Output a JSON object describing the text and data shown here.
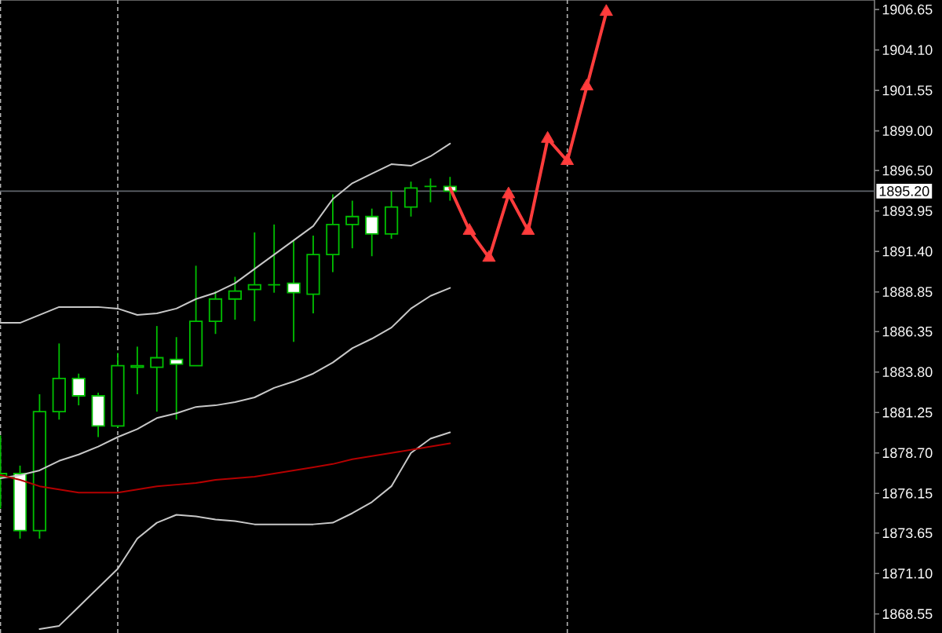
{
  "chart_data": {
    "type": "candlestick",
    "categories": [
      null,
      null,
      null,
      null,
      null,
      null,
      null,
      null,
      null,
      null,
      null,
      null,
      null,
      null,
      null,
      null,
      null,
      null,
      null,
      null,
      null,
      null,
      null,
      null,
      null,
      null,
      null,
      null,
      null,
      null,
      null,
      null,
      null,
      null,
      null,
      null,
      null,
      null,
      null,
      null,
      null,
      null,
      null,
      null,
      null
    ],
    "ohlc": [
      [
        1877.2,
        1879.8,
        1875.2,
        1877.4
      ],
      [
        1877.4,
        1877.9,
        1873.3,
        1873.8
      ],
      [
        1873.8,
        1882.4,
        1873.3,
        1881.3
      ],
      [
        1881.3,
        1885.6,
        1880.8,
        1883.4
      ],
      [
        1883.4,
        1883.7,
        1881.7,
        1882.3
      ],
      [
        1882.3,
        1882.5,
        1879.7,
        1880.4
      ],
      [
        1880.4,
        1885.0,
        1880.3,
        1884.2
      ],
      [
        1884.1,
        1885.4,
        1882.4,
        1884.2
      ],
      [
        1884.1,
        1886.7,
        1881.3,
        1884.7
      ],
      [
        1884.6,
        1886.0,
        1880.8,
        1884.3
      ],
      [
        1884.2,
        1890.5,
        1884.2,
        1887.0
      ],
      [
        1887.0,
        1888.9,
        1886.2,
        1888.4
      ],
      [
        1888.4,
        1889.8,
        1887.1,
        1888.9
      ],
      [
        1889.0,
        1892.6,
        1887.0,
        1889.3
      ],
      [
        1889.3,
        1893.1,
        1888.8,
        1889.3
      ],
      [
        1889.4,
        1892.1,
        1885.7,
        1888.8
      ],
      [
        1888.7,
        1892.4,
        1887.5,
        1891.2
      ],
      [
        1891.2,
        1895.0,
        1890.1,
        1893.1
      ],
      [
        1893.1,
        1894.6,
        1891.6,
        1893.6
      ],
      [
        1893.6,
        1894.1,
        1891.1,
        1892.5
      ],
      [
        1892.5,
        1895.2,
        1892.2,
        1894.2
      ],
      [
        1894.2,
        1895.8,
        1893.6,
        1895.4
      ],
      [
        1895.5,
        1896.0,
        1894.5,
        1895.5
      ],
      [
        1895.5,
        1896.1,
        1894.6,
        1895.2
      ],
      null,
      null,
      null,
      null,
      null,
      null,
      null,
      null,
      null,
      null,
      null,
      null,
      null,
      null,
      null,
      null,
      null,
      null,
      null,
      null,
      null
    ],
    "color": "#00c000",
    "colors": [
      "#000000",
      "#ffffff",
      "#000000",
      "#000000",
      "#ffffff",
      "#ffffff",
      "#000000",
      "#000000",
      "#000000",
      "#ffffff",
      "#000000",
      "#000000",
      "#000000",
      "#000000",
      "#00c000",
      "#ffffff",
      "#000000",
      "#000000",
      "#000000",
      "#ffffff",
      "#000000",
      "#000000",
      "#00c000",
      "#ffffff",
      null,
      null,
      null,
      null,
      null,
      null,
      null,
      null,
      null,
      null,
      null,
      null,
      null,
      null,
      null,
      null,
      null,
      null,
      null,
      null,
      null
    ],
    "series": [
      {
        "type": "line",
        "color": "#c8c8c8",
        "values": [
          1886.9,
          1886.9,
          1887.4,
          1887.9,
          1887.9,
          1887.9,
          1887.8,
          1887.4,
          1887.5,
          1887.8,
          1888.4,
          1888.8,
          1889.4,
          1890.3,
          1891.2,
          1892.1,
          1893.0,
          1894.7,
          1895.7,
          1896.3,
          1896.9,
          1896.8,
          1897.4,
          1898.2,
          null,
          null,
          null,
          null,
          null,
          null,
          null,
          null,
          null,
          null,
          null,
          null,
          null,
          null,
          null,
          null,
          null,
          null,
          null,
          null,
          null
        ]
      },
      {
        "type": "line",
        "color": "#c8c8c8",
        "values": [
          1877.1,
          1877.3,
          1877.6,
          1878.2,
          1878.6,
          1879.1,
          1879.7,
          1880.2,
          1880.9,
          1881.2,
          1881.6,
          1881.7,
          1881.9,
          1882.2,
          1882.8,
          1883.2,
          1883.7,
          1884.4,
          1885.3,
          1885.9,
          1886.6,
          1887.8,
          1888.6,
          1889.1,
          null,
          null,
          null,
          null,
          null,
          null,
          null,
          null,
          null,
          null,
          null,
          null,
          null,
          null,
          null,
          null,
          null,
          null,
          null,
          null,
          null
        ]
      },
      {
        "type": "line",
        "color": "#c8c8c8",
        "values": [
          null,
          null,
          1867.6,
          1867.8,
          1869.0,
          1870.2,
          1871.4,
          1873.3,
          1874.3,
          1874.8,
          1874.7,
          1874.5,
          1874.4,
          1874.2,
          1874.2,
          1874.2,
          1874.2,
          1874.3,
          1874.9,
          1875.6,
          1876.6,
          1878.7,
          1879.6,
          1880.0,
          null,
          null,
          null,
          null,
          null,
          null,
          null,
          null,
          null,
          null,
          null,
          null,
          null,
          null,
          null,
          null,
          null,
          null,
          null,
          null,
          null
        ]
      },
      {
        "type": "line",
        "color": "#b40000",
        "values": [
          1877.3,
          1877.0,
          1876.6,
          1876.4,
          1876.2,
          1876.2,
          1876.2,
          1876.4,
          1876.6,
          1876.7,
          1876.8,
          1877.0,
          1877.1,
          1877.2,
          1877.4,
          1877.6,
          1877.8,
          1878.0,
          1878.3,
          1878.5,
          1878.7,
          1878.9,
          1879.1,
          1879.3,
          null,
          null,
          null,
          null,
          null,
          null,
          null,
          null,
          null,
          null,
          null,
          null,
          null,
          null,
          null,
          null,
          null,
          null,
          null,
          null,
          null
        ]
      },
      {
        "type": "line",
        "color": "#ff3c3c",
        "marker": "triangle",
        "values": [
          null,
          null,
          null,
          null,
          null,
          null,
          null,
          null,
          null,
          null,
          null,
          null,
          null,
          null,
          null,
          null,
          null,
          null,
          null,
          null,
          null,
          null,
          null,
          1895.4,
          1892.7,
          1891.0,
          1895.0,
          1892.7,
          1898.5,
          1897.1,
          1901.8,
          1906.5,
          null,
          null,
          null,
          null,
          null,
          null,
          null,
          null,
          null,
          null,
          null,
          null,
          null
        ]
      }
    ],
    "ylim": [
      1867.35,
      1907.25
    ],
    "yticks": [
      1906.65,
      {
        "value": 1904.1,
        "label": "1904.10"
      },
      1901.55,
      {
        "value": 1899,
        "label": "1899.00"
      },
      {
        "value": 1896.5,
        "label": "1896.50"
      },
      1893.95,
      {
        "value": 1891.4,
        "label": "1891.40"
      },
      1888.85,
      1886.35,
      {
        "value": 1883.8,
        "label": "1883.80"
      },
      1881.25,
      {
        "value": 1878.7,
        "label": "1878.70"
      },
      1876.15,
      1873.65,
      {
        "value": 1871.1,
        "label": "1871.10"
      },
      1868.55
    ],
    "tick_labels": "y",
    "ref_lines": [
      {
        "axis": "y",
        "value": 1895.2,
        "label": "1895.20",
        "color": "#5f646b"
      }
    ]
  }
}
